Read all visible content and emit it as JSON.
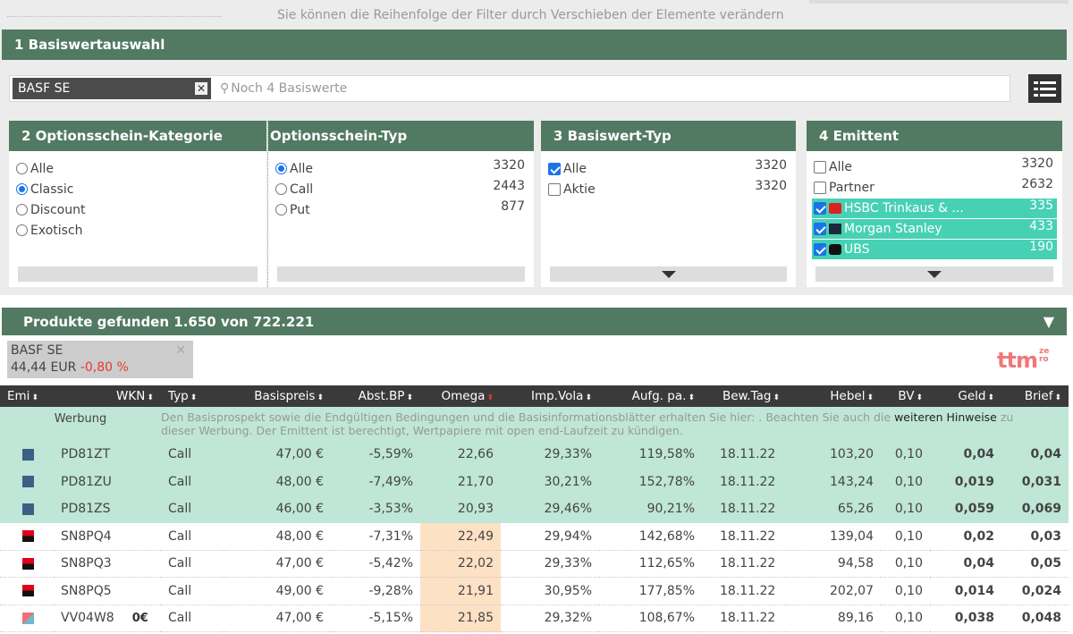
{
  "hint": "Sie können die Reihenfolge der Filter durch Verschieben der Elemente verändern",
  "section1": {
    "title": "1  Basiswertauswahl",
    "tag": "BASF SE",
    "placeholder": "Noch 4 Basiswerte"
  },
  "panel2": {
    "title": "2  Optionsschein-Kategorie",
    "options": [
      "Alle",
      "Classic",
      "Discount",
      "Exotisch"
    ],
    "selected": "Classic"
  },
  "panel2b": {
    "title": "Optionsschein-Typ",
    "options": [
      {
        "label": "Alle",
        "count": "3320"
      },
      {
        "label": "Call",
        "count": "2443"
      },
      {
        "label": "Put",
        "count": "877"
      }
    ],
    "selected": "Alle"
  },
  "panel3": {
    "title": "3  Basiswert-Typ",
    "options": [
      {
        "label": "Alle",
        "count": "3320",
        "checked": true
      },
      {
        "label": "Aktie",
        "count": "3320",
        "checked": false
      }
    ]
  },
  "panel4": {
    "title": "4  Emittent",
    "options": [
      {
        "label": "Alle",
        "count": "3320"
      },
      {
        "label": "Partner",
        "count": "2632"
      },
      {
        "label": "HSBC Trinkaus & ...",
        "count": "335"
      },
      {
        "label": "Morgan Stanley",
        "count": "433"
      },
      {
        "label": "UBS",
        "count": "190"
      }
    ]
  },
  "products": {
    "title": "Produkte gefunden 1.650 von 722.221"
  },
  "chip": {
    "name": "BASF SE",
    "price": "44,44 EUR",
    "change": "-0,80 %"
  },
  "logo": {
    "main": "ttm",
    "sup1": "ze",
    "sup2": "ro"
  },
  "table": {
    "headers": [
      "Emi",
      "WKN",
      "Typ",
      "Basispreis",
      "Abst.BP",
      "Omega",
      "Imp.Vola",
      "Aufg. pa.",
      "Bew.Tag",
      "Hebel",
      "BV",
      "Geld",
      "Brief"
    ],
    "ad": {
      "label": "Werbung",
      "text1": "Den Basisprospekt sowie die Endgültigen Bedingungen und die Basisinformationsblätter erhalten Sie hier: . Beachten Sie auch die ",
      "link": "weiteren Hinweise",
      "text2": " zu dieser Werbung. Der Emittent ist berechtigt, Wertpapiere mit open end-Laufzeit zu kündigen."
    },
    "rows": [
      {
        "emi": "ubs",
        "wkn": "PD81ZT",
        "badge": "",
        "typ": "Call",
        "bp": "47,00 €",
        "abst": "-5,59%",
        "omega": "22,66",
        "vola": "29,33%",
        "aufg": "119,58%",
        "tag": "18.11.22",
        "hebel": "103,20",
        "bv": "0,10",
        "geld": "0,04",
        "brief": "0,04",
        "ad": true
      },
      {
        "emi": "ubs",
        "wkn": "PD81ZU",
        "badge": "",
        "typ": "Call",
        "bp": "48,00 €",
        "abst": "-7,49%",
        "omega": "21,70",
        "vola": "30,21%",
        "aufg": "152,78%",
        "tag": "18.11.22",
        "hebel": "143,24",
        "bv": "0,10",
        "geld": "0,019",
        "brief": "0,031",
        "ad": true
      },
      {
        "emi": "ubs",
        "wkn": "PD81ZS",
        "badge": "",
        "typ": "Call",
        "bp": "46,00 €",
        "abst": "-3,53%",
        "omega": "20,93",
        "vola": "29,46%",
        "aufg": "90,21%",
        "tag": "18.11.22",
        "hebel": "65,26",
        "bv": "0,10",
        "geld": "0,059",
        "brief": "0,069",
        "ad": true
      },
      {
        "emi": "socgen",
        "wkn": "SN8PQ4",
        "badge": "",
        "typ": "Call",
        "bp": "48,00 €",
        "abst": "-7,31%",
        "omega": "22,49",
        "vola": "29,94%",
        "aufg": "142,68%",
        "tag": "18.11.22",
        "hebel": "139,04",
        "bv": "0,10",
        "geld": "0,02",
        "brief": "0,03",
        "ad": false
      },
      {
        "emi": "socgen",
        "wkn": "SN8PQ3",
        "badge": "",
        "typ": "Call",
        "bp": "47,00 €",
        "abst": "-5,42%",
        "omega": "22,02",
        "vola": "29,33%",
        "aufg": "112,65%",
        "tag": "18.11.22",
        "hebel": "94,58",
        "bv": "0,10",
        "geld": "0,04",
        "brief": "0,05",
        "ad": false
      },
      {
        "emi": "socgen",
        "wkn": "SN8PQ5",
        "badge": "",
        "typ": "Call",
        "bp": "49,00 €",
        "abst": "-9,28%",
        "omega": "21,91",
        "vola": "30,95%",
        "aufg": "177,85%",
        "tag": "18.11.22",
        "hebel": "202,07",
        "bv": "0,10",
        "geld": "0,014",
        "brief": "0,024",
        "ad": false
      },
      {
        "emi": "vontobel",
        "wkn": "VV04W8",
        "badge": "0€",
        "typ": "Call",
        "bp": "47,00 €",
        "abst": "-5,15%",
        "omega": "21,85",
        "vola": "29,32%",
        "aufg": "108,67%",
        "tag": "18.11.22",
        "hebel": "89,16",
        "bv": "0,10",
        "geld": "0,038",
        "brief": "0,048",
        "ad": false
      }
    ]
  },
  "colors": {
    "header_green": "#527a62",
    "selected_teal": "#47d1b4",
    "ad_row": "#bfe6d6",
    "omega_highlight": "#fde1c5",
    "negative": "#e53935"
  }
}
